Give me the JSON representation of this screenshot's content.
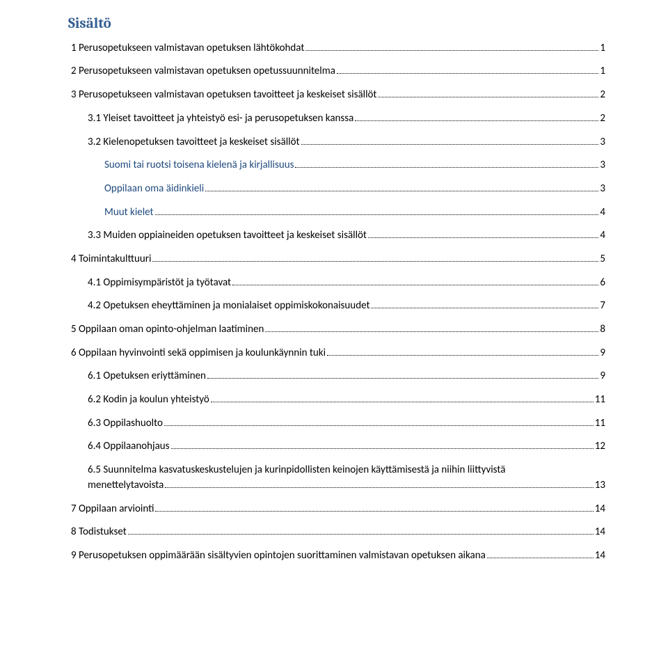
{
  "title": "Sisältö",
  "colors": {
    "heading": "#365f91",
    "indigo": "#1f497d",
    "text": "#000000",
    "dots": "#000000",
    "background": "#ffffff"
  },
  "fonts": {
    "heading_family": "Cambria",
    "body_family": "Calibri",
    "heading_size_pt": 16,
    "body_size_pt": 11
  },
  "toc": [
    {
      "level": 0,
      "color": "black",
      "text": "1 Perusopetukseen valmistavan opetuksen lähtökohdat",
      "page": "1"
    },
    {
      "level": 0,
      "color": "black",
      "text": "2 Perusopetukseen valmistavan opetuksen opetussuunnitelma",
      "page": "1"
    },
    {
      "level": 0,
      "color": "black",
      "text": "3 Perusopetukseen valmistavan opetuksen tavoitteet ja keskeiset sisällöt",
      "page": "2"
    },
    {
      "level": 1,
      "color": "black",
      "text": "3.1 Yleiset tavoitteet ja yhteistyö esi- ja perusopetuksen kanssa",
      "page": "2"
    },
    {
      "level": 1,
      "color": "black",
      "text": "3.2 Kielenopetuksen tavoitteet ja keskeiset sisällöt",
      "page": "3"
    },
    {
      "level": 2,
      "color": "indigo",
      "text": "Suomi tai ruotsi toisena kielenä ja kirjallisuus",
      "page": "3"
    },
    {
      "level": 2,
      "color": "indigo",
      "text": "Oppilaan oma äidinkieli",
      "page": "3"
    },
    {
      "level": 2,
      "color": "indigo",
      "text": "Muut kielet",
      "page": "4"
    },
    {
      "level": 1,
      "color": "black",
      "text": "3.3 Muiden oppiaineiden opetuksen tavoitteet ja keskeiset sisällöt",
      "page": "4"
    },
    {
      "level": 0,
      "color": "black",
      "text": "4 Toimintakulttuuri",
      "page": "5"
    },
    {
      "level": 1,
      "color": "black",
      "text": "4.1 Oppimisympäristöt ja työtavat",
      "page": "6"
    },
    {
      "level": 1,
      "color": "black",
      "text": "4.2 Opetuksen eheyttäminen ja monialaiset oppimiskokonaisuudet",
      "page": "7"
    },
    {
      "level": 0,
      "color": "black",
      "text": "5 Oppilaan oman opinto-ohjelman laatiminen",
      "page": "8"
    },
    {
      "level": 0,
      "color": "black",
      "text": "6 Oppilaan hyvinvointi sekä oppimisen ja koulunkäynnin tuki",
      "page": "9"
    },
    {
      "level": 1,
      "color": "black",
      "text": "6.1 Opetuksen eriyttäminen",
      "page": "9"
    },
    {
      "level": 1,
      "color": "black",
      "text": "6.2 Kodin ja koulun yhteistyö",
      "page": "11"
    },
    {
      "level": 1,
      "color": "black",
      "text": "6.3 Oppilashuolto",
      "page": "11"
    },
    {
      "level": 1,
      "color": "black",
      "text": "6.4 Oppilaanohjaus",
      "page": "12"
    },
    {
      "level": 1,
      "color": "black",
      "text_line1": "6.5 Suunnitelma kasvatuskeskustelujen ja kurinpidollisten keinojen käyttämisestä ja niihin liittyvistä",
      "text_line2": "menettelytavoista",
      "page": "13",
      "multiline": true
    },
    {
      "level": 0,
      "color": "black",
      "text": "7 Oppilaan arviointi",
      "page": "14"
    },
    {
      "level": 0,
      "color": "black",
      "text": "8 Todistukset",
      "page": "14"
    },
    {
      "level": 0,
      "color": "black",
      "text": "9 Perusopetuksen oppimäärään sisältyvien opintojen suorittaminen valmistavan opetuksen aikana",
      "page": "14"
    }
  ]
}
